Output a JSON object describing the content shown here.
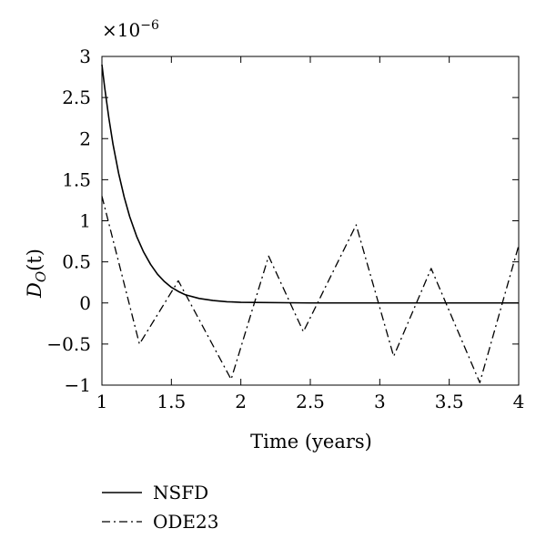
{
  "chart_data": {
    "type": "line",
    "title": "",
    "xlabel": "Time (years)",
    "ylabel": "D_O(t)",
    "ylabel_main": "D",
    "ylabel_sub": "O",
    "ylabel_arg": "(t)",
    "y_multiplier": "×10",
    "y_multiplier_exp": "−6",
    "xlim": [
      1,
      4
    ],
    "ylim": [
      -1,
      3
    ],
    "xticks": [
      1,
      1.5,
      2,
      2.5,
      3,
      3.5,
      4
    ],
    "xtick_labels": [
      "1",
      "1.5",
      "2",
      "2.5",
      "3",
      "3.5",
      "4"
    ],
    "yticks": [
      -1,
      -0.5,
      0,
      0.5,
      1,
      1.5,
      2,
      2.5,
      3
    ],
    "ytick_labels": [
      "−1",
      "−0.5",
      "0",
      "0.5",
      "1",
      "1.5",
      "2",
      "2.5",
      "3"
    ],
    "grid": false,
    "legend_position": "below",
    "series": [
      {
        "name": "NSFD",
        "style": "solid",
        "color": "#000000",
        "x": [
          1.0,
          1.02,
          1.05,
          1.08,
          1.12,
          1.16,
          1.2,
          1.25,
          1.3,
          1.35,
          1.4,
          1.45,
          1.5,
          1.55,
          1.6,
          1.7,
          1.8,
          1.9,
          2.0,
          2.5,
          3.0,
          3.5,
          4.0
        ],
        "y": [
          2.9,
          2.62,
          2.25,
          1.93,
          1.58,
          1.29,
          1.05,
          0.81,
          0.62,
          0.47,
          0.35,
          0.26,
          0.19,
          0.14,
          0.1,
          0.055,
          0.03,
          0.015,
          0.008,
          0.0,
          0.0,
          0.0,
          0.0
        ]
      },
      {
        "name": "ODE23",
        "style": "dashdot",
        "color": "#000000",
        "x": [
          1.0,
          1.27,
          1.55,
          1.93,
          2.2,
          2.45,
          2.83,
          3.1,
          3.37,
          3.72,
          4.0
        ],
        "y": [
          1.3,
          -0.5,
          0.27,
          -0.93,
          0.57,
          -0.35,
          0.95,
          -0.65,
          0.42,
          -0.97,
          0.7
        ]
      }
    ]
  }
}
